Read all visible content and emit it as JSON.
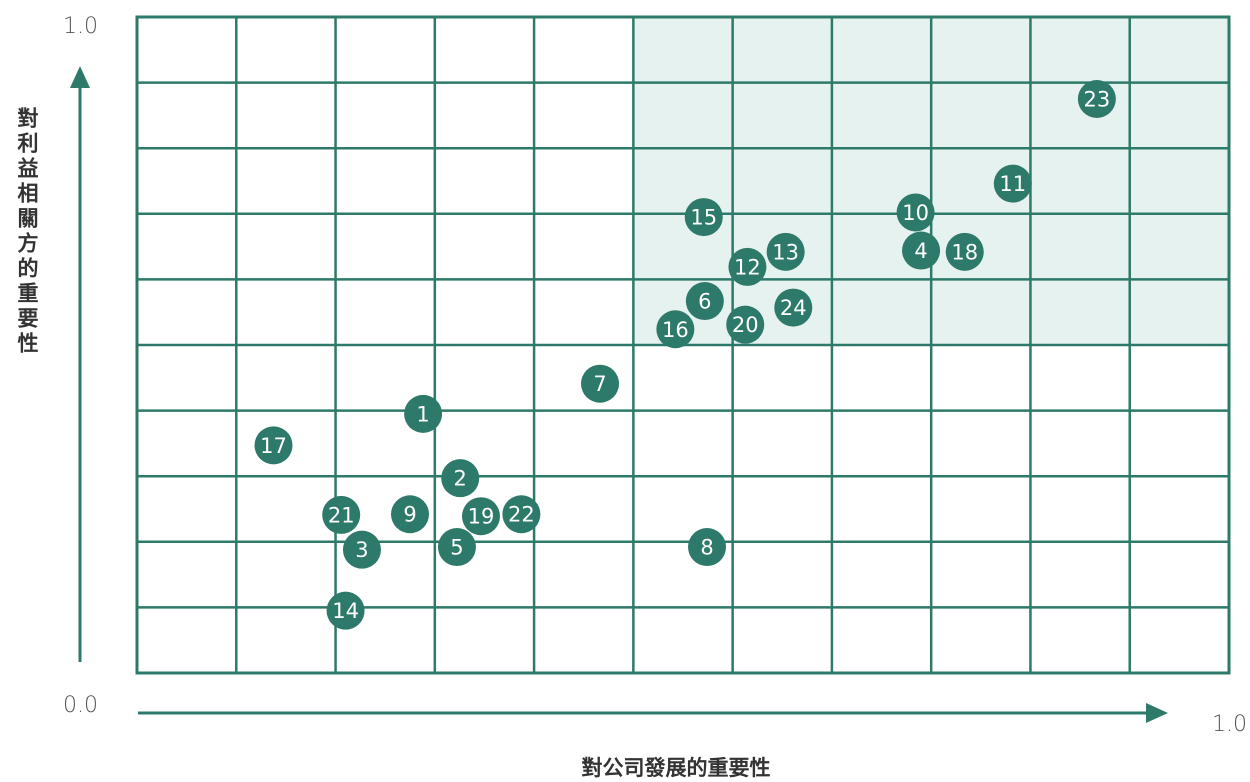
{
  "chart_data": {
    "type": "scatter",
    "title": "",
    "xlabel": "對公司發展的重要性",
    "ylabel": "對利益相關方的重要性",
    "xlim": [
      0,
      1
    ],
    "ylim": [
      0,
      1
    ],
    "x_tick_labels": {
      "min": "0.0",
      "max": "1.0"
    },
    "y_tick_labels": {
      "min": "0.0",
      "max": "1.0"
    },
    "grid": true,
    "grid_columns": 11,
    "grid_rows": 10,
    "highlight_region": {
      "x": [
        0.455,
        1.0
      ],
      "y": [
        0.5,
        1.0
      ],
      "color": "#e6f2ef"
    },
    "colors": {
      "grid": "#2d7a6a",
      "point": "#2d7a6a",
      "arrow": "#2d7a6a",
      "highlight": "#e6f2ef"
    },
    "points": [
      {
        "label": "1",
        "x": 0.262,
        "y": 0.395
      },
      {
        "label": "2",
        "x": 0.296,
        "y": 0.297
      },
      {
        "label": "3",
        "x": 0.206,
        "y": 0.188
      },
      {
        "label": "4",
        "x": 0.718,
        "y": 0.644
      },
      {
        "label": "5",
        "x": 0.293,
        "y": 0.192
      },
      {
        "label": "6",
        "x": 0.52,
        "y": 0.567
      },
      {
        "label": "7",
        "x": 0.424,
        "y": 0.441
      },
      {
        "label": "8",
        "x": 0.522,
        "y": 0.192
      },
      {
        "label": "9",
        "x": 0.25,
        "y": 0.242
      },
      {
        "label": "10",
        "x": 0.713,
        "y": 0.702
      },
      {
        "label": "11",
        "x": 0.802,
        "y": 0.746
      },
      {
        "label": "12",
        "x": 0.559,
        "y": 0.619
      },
      {
        "label": "13",
        "x": 0.594,
        "y": 0.642
      },
      {
        "label": "14",
        "x": 0.191,
        "y": 0.095
      },
      {
        "label": "15",
        "x": 0.519,
        "y": 0.695
      },
      {
        "label": "16",
        "x": 0.493,
        "y": 0.524
      },
      {
        "label": "17",
        "x": 0.125,
        "y": 0.347
      },
      {
        "label": "18",
        "x": 0.758,
        "y": 0.642
      },
      {
        "label": "19",
        "x": 0.315,
        "y": 0.239
      },
      {
        "label": "20",
        "x": 0.557,
        "y": 0.531
      },
      {
        "label": "21",
        "x": 0.187,
        "y": 0.241
      },
      {
        "label": "22",
        "x": 0.352,
        "y": 0.242
      },
      {
        "label": "23",
        "x": 0.879,
        "y": 0.875
      },
      {
        "label": "24",
        "x": 0.601,
        "y": 0.557
      }
    ]
  }
}
